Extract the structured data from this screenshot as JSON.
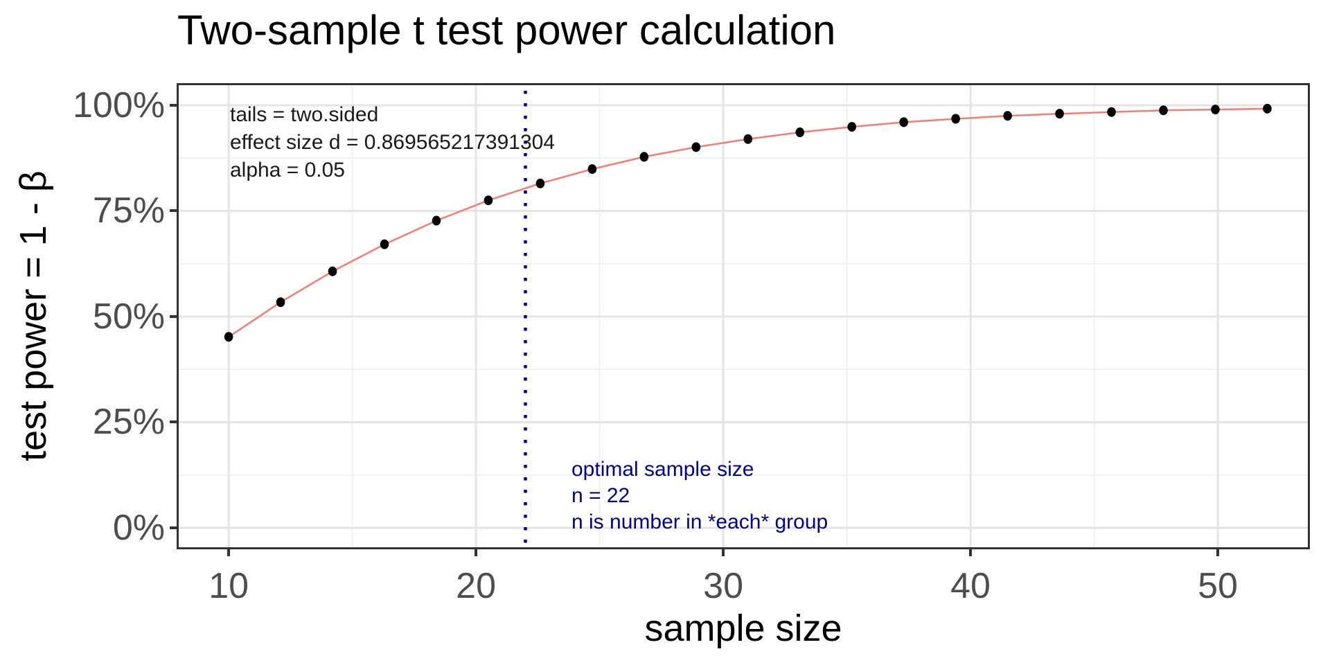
{
  "chart_data": {
    "type": "line",
    "title": "Two-sample t test power calculation",
    "xlabel": "sample size",
    "ylabel": "test power = 1 - β",
    "x_axis": {
      "ticks": [
        10,
        20,
        30,
        40,
        50
      ],
      "minor_ticks": [
        15,
        25,
        35,
        45
      ],
      "range": [
        7.98,
        53.64
      ]
    },
    "y_axis": {
      "ticks": [
        {
          "value": 0,
          "label": "0%"
        },
        {
          "value": 25,
          "label": "25%"
        },
        {
          "value": 50,
          "label": "50%"
        },
        {
          "value": 75,
          "label": "75%"
        },
        {
          "value": 100,
          "label": "100%"
        }
      ],
      "minor_ticks": [
        12.5,
        37.5,
        62.5,
        87.5
      ],
      "range_pct": [
        -4.59,
        104.75
      ]
    },
    "series": [
      {
        "name": "power-curve",
        "line_color": "#f87b72",
        "point_color": "#000000",
        "x": [
          10,
          12.1,
          14.2,
          16.3,
          18.4,
          20.5,
          22.6,
          24.7,
          26.8,
          28.9,
          31,
          33.1,
          35.2,
          37.3,
          39.4,
          41.5,
          43.6,
          45.7,
          47.8,
          49.9,
          52
        ],
        "y_pct": [
          45.2,
          53.4,
          60.7,
          67.1,
          72.7,
          77.5,
          81.5,
          84.9,
          87.8,
          90.1,
          92.0,
          93.6,
          94.9,
          96.0,
          96.8,
          97.5,
          98.0,
          98.4,
          98.8,
          99.0,
          99.2
        ]
      }
    ],
    "vline": {
      "x": 22,
      "style": "dotted",
      "color": "#00008b"
    },
    "annotations": [
      {
        "id": "params",
        "color": "#1a1a1a",
        "lines": [
          "tails = two.sided",
          "effect size d = 0.869565217391304",
          "alpha = 0.05"
        ]
      },
      {
        "id": "optimal",
        "color": "#00008b",
        "lines": [
          "optimal sample size",
          "n = 22",
          "n is number in *each* group"
        ]
      }
    ],
    "grid": {
      "major_color": "#e4e4e4",
      "minor_color": "#efefef",
      "on": true
    },
    "panel": {
      "border_color": "#333333",
      "background": "#ffffff"
    },
    "text_colors": {
      "tick_labels": "#4d4d4d",
      "titles": "#000000"
    },
    "legend": "none"
  }
}
